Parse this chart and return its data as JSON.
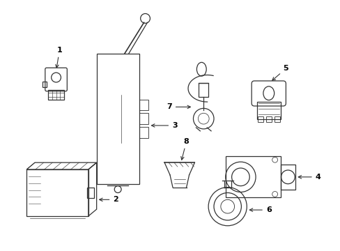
{
  "background_color": "#ffffff",
  "line_color": "#333333",
  "label_color": "#000000",
  "figsize": [
    4.89,
    3.6
  ],
  "dpi": 100
}
